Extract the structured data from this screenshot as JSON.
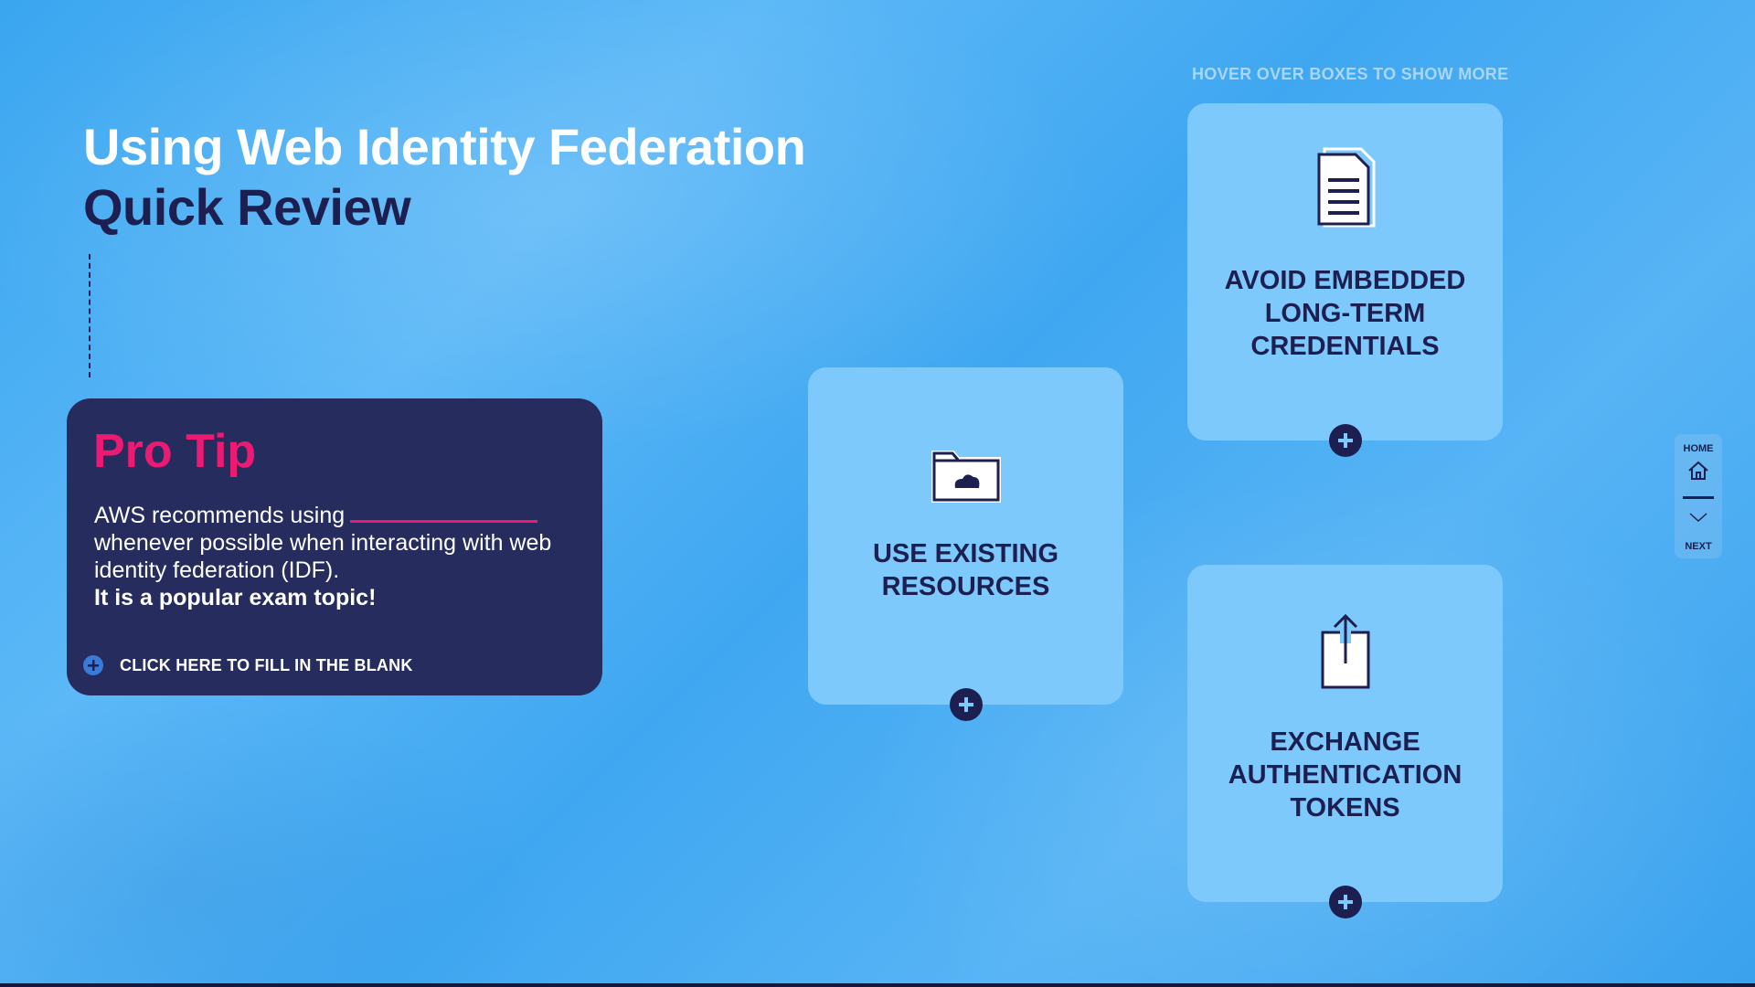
{
  "header": {
    "title_line1": "Using Web Identity Federation",
    "title_line2": "Quick Review"
  },
  "pro_tip": {
    "title": "Pro Tip",
    "body_before_blank": "AWS recommends using",
    "body_after_blank": "whenever possible when interacting with web identity federation (IDF).",
    "emphasis": "It is a popular exam topic!",
    "fill_blank_label": "CLICK HERE TO FILL IN THE BLANK"
  },
  "hover_hint": "HOVER OVER BOXES TO SHOW MORE",
  "cards": [
    {
      "label": "AVOID EMBEDDED LONG-TERM CREDENTIALS",
      "icon": "document-icon"
    },
    {
      "label": "USE EXISTING RESOURCES",
      "icon": "cloud-folder-icon"
    },
    {
      "label": "EXCHANGE AUTHENTICATION TOKENS",
      "icon": "upload-icon"
    }
  ],
  "nav": {
    "home_label": "HOME",
    "next_label": "NEXT"
  },
  "colors": {
    "background": "#46acf3",
    "card": "#7ec9fb",
    "navy": "#1c1f4f",
    "pro_tip_bg": "#272c5f",
    "accent_pink": "#ec1a72",
    "title_white": "#ffffff"
  }
}
